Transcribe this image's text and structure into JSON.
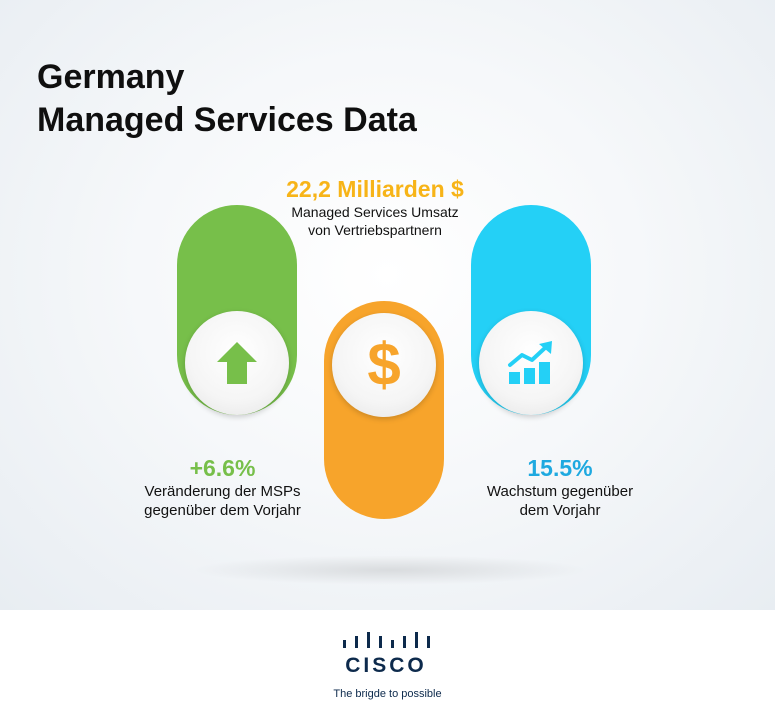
{
  "title": {
    "line1": "Germany",
    "line2": "Managed Services Data"
  },
  "top_stat": {
    "value": "22,2 Milliarden $",
    "desc_line1": "Managed Services Umsatz",
    "desc_line2": "von Vertriebspartnern"
  },
  "left_stat": {
    "value": "+6.6%",
    "desc_line1": "Veränderung der MSPs",
    "desc_line2": "gegenüber dem Vorjahr"
  },
  "right_stat": {
    "value": "15.5%",
    "desc_line1": "Wachstum gegenüber",
    "desc_line2": "dem Vorjahr"
  },
  "icons": {
    "left": "arrow-up-icon",
    "center": "dollar-sign-icon",
    "right": "growth-chart-icon"
  },
  "dollar_glyph": "$",
  "colors": {
    "green": "#77bf4a",
    "orange": "#f7a42b",
    "blue": "#24d0f6",
    "gold_text": "#f7b418",
    "cisco_navy": "#0d2a4c"
  },
  "footer": {
    "logo_text": "CISCO",
    "tagline": "The brigde to possible"
  }
}
